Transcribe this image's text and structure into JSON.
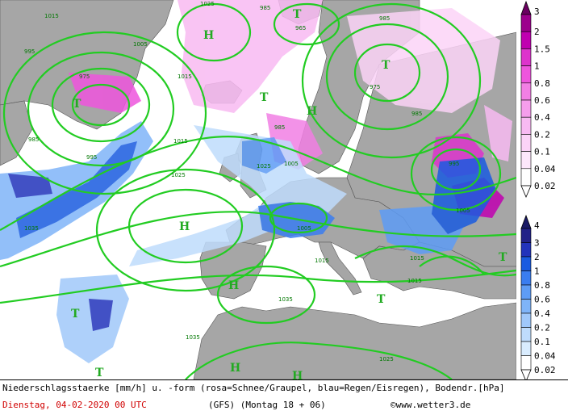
{
  "map": {
    "pressure_labels": [
      "1015",
      "995",
      "975",
      "985",
      "1005",
      "1015",
      "1025",
      "985",
      "965",
      "975",
      "985",
      "1015",
      "995",
      "985",
      "1035",
      "1025",
      "1015",
      "1005",
      "1035",
      "1015",
      "1025",
      "1015",
      "1005",
      "1025",
      "985",
      "1005",
      "995",
      "1035"
    ],
    "highs": [
      "H",
      "H",
      "H",
      "H",
      "H",
      "H"
    ],
    "lows": [
      "T",
      "T",
      "T",
      "T",
      "T",
      "T",
      "T",
      "T"
    ],
    "colors": {
      "land": "#a6a6a6",
      "sea": "#ffffff",
      "isobar": "#22cc22",
      "rain_light": "#cce8ff",
      "rain_mid": "#5ea8ff",
      "rain_heavy": "#1a3fd1",
      "snow_light": "#fbd0f5",
      "snow_mid": "#ef66dd",
      "snow_heavy": "#aa0099"
    }
  },
  "legend_snow": {
    "values": [
      "3",
      "2",
      "1.5",
      "1",
      "0.8",
      "0.6",
      "0.4",
      "0.2",
      "0.1",
      "0.04",
      "0.02"
    ],
    "colors": [
      "#6a0060",
      "#9c008c",
      "#c000b0",
      "#dd33cc",
      "#ee55dd",
      "#f27fe4",
      "#f59eec",
      "#f8baf2",
      "#fbd3f7",
      "#fde7fb",
      "#ffffff"
    ]
  },
  "legend_rain": {
    "values": [
      "4",
      "3",
      "2",
      "1",
      "0.8",
      "0.6",
      "0.4",
      "0.2",
      "0.1",
      "0.04",
      "0.02"
    ],
    "colors": [
      "#1a1a66",
      "#222288",
      "#2233bb",
      "#1a5be0",
      "#3a7df0",
      "#5e9cf5",
      "#7fb4f8",
      "#a0c8fa",
      "#bfdcfc",
      "#d9ecfe",
      "#ffffff"
    ]
  },
  "footer": {
    "description": "Niederschlagsstaerke [mm/h] u. -form (rosa=Schnee/Graupel, blau=Regen/Eisregen), Bodendr.[hPa]",
    "date": "Dienstag, 04-02-2020  00 UTC",
    "model": "(GFS)  (Montag 18 + 06)",
    "copyright": "©www.wetter3.de"
  }
}
